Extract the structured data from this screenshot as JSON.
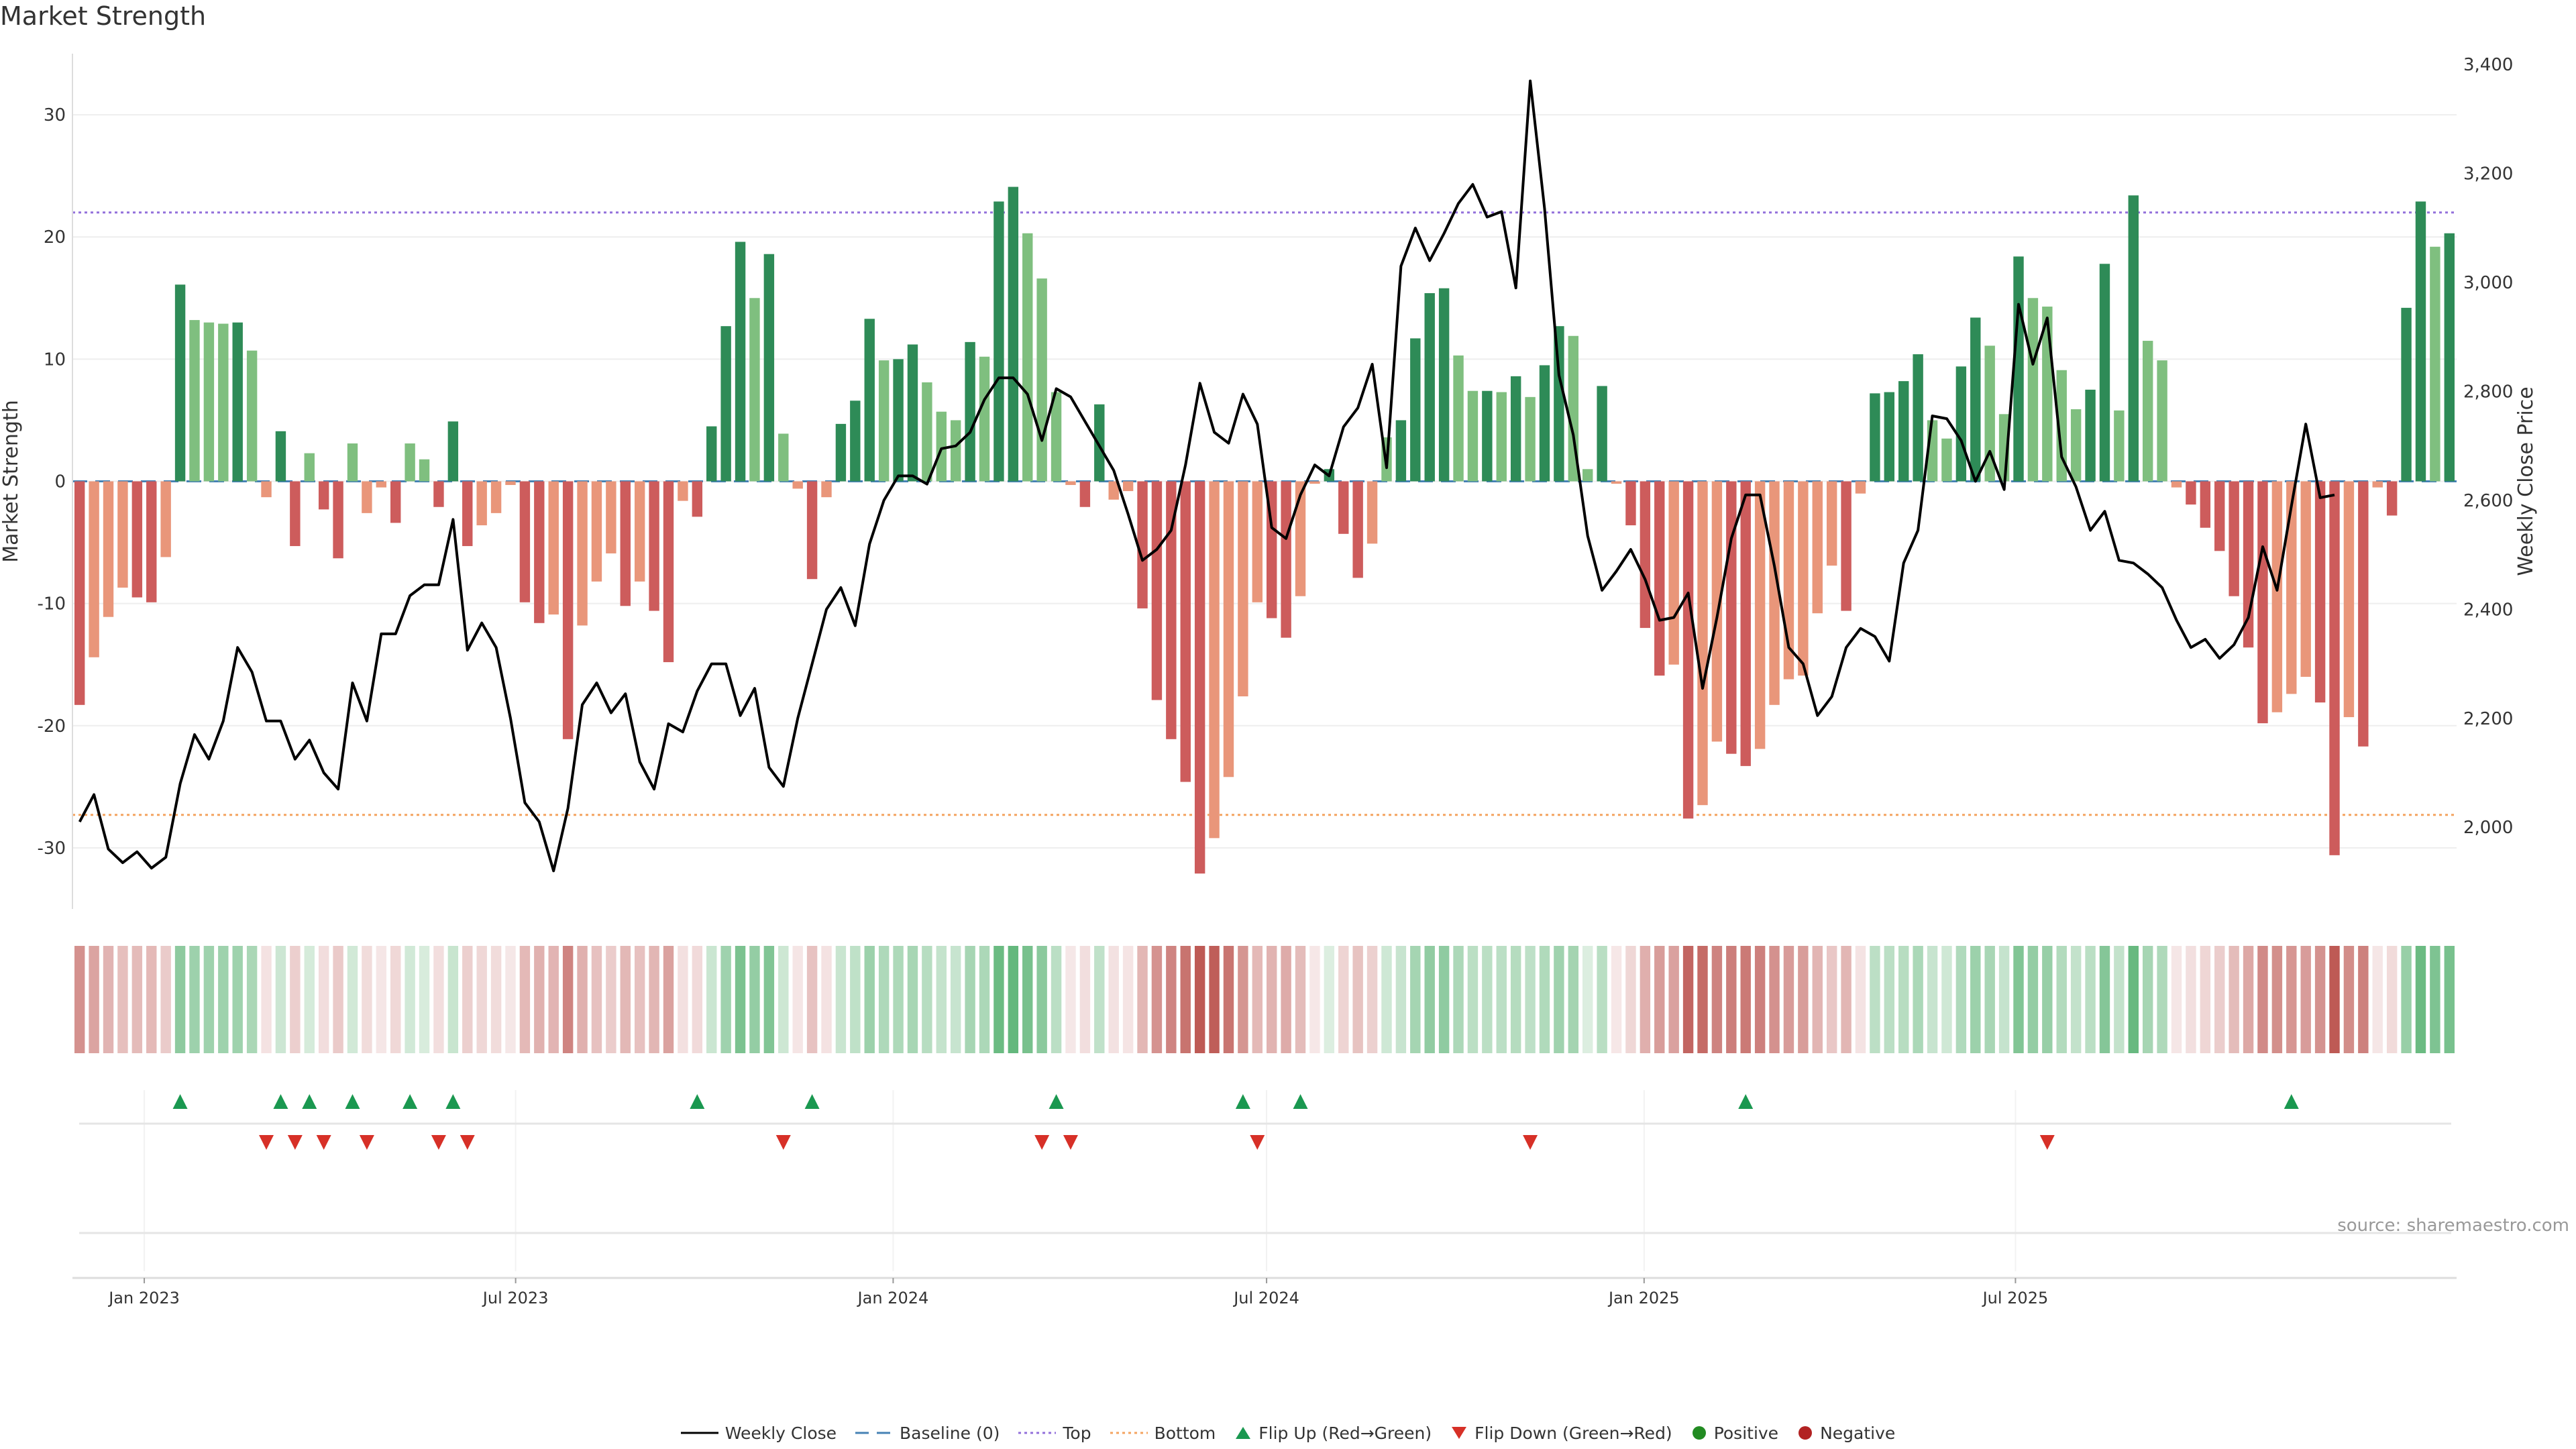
{
  "title": "Market Strength",
  "source": "source: sharemaestro.com",
  "colors": {
    "strong_green": "#2e8b57",
    "light_green": "#7fbf7f",
    "strong_red": "#cd5c5c",
    "light_red": "#e9967a",
    "price_line": "#000000",
    "top_line": "#9370db",
    "bottom_line": "#f4a460",
    "baseline": "#4682b4",
    "flip_up": "#1a9850",
    "flip_down": "#d73027",
    "positive": "#228b22",
    "negative": "#b22222"
  },
  "chart_data": {
    "type": "bar",
    "x_tick_labels": [
      "Jan 2023",
      "Jul 2023",
      "Jan 2024",
      "Jul 2024",
      "Jan 2025",
      "Jul 2025"
    ],
    "x_tick_dates": [
      "2023-01-01",
      "2023-07-01",
      "2024-01-01",
      "2024-07-01",
      "2025-01-01",
      "2025-07-01"
    ],
    "week_start": "2022-11-27",
    "ylabel_left": "Market Strength",
    "ylabel_right": "Weekly Close Price",
    "ylim_left": [
      -35,
      35
    ],
    "ylim_right": [
      1850,
      3420
    ],
    "yticks_left": [
      -30,
      -20,
      -10,
      0,
      10,
      20,
      30
    ],
    "yticks_right": [
      2000,
      2200,
      2400,
      2600,
      2800,
      3000,
      3200,
      3400
    ],
    "top_level": 22,
    "bottom_level": -27.3,
    "grid": true,
    "legend_position": "bottom-center",
    "series": [
      {
        "name": "Market Strength",
        "values": [
          -18.3,
          -14.4,
          -11.1,
          -8.7,
          -9.5,
          -9.9,
          -6.2,
          16.1,
          13.2,
          13.0,
          12.9,
          13.0,
          10.7,
          -1.3,
          4.1,
          -5.3,
          2.3,
          -2.3,
          -6.3,
          3.1,
          -2.6,
          -0.5,
          -3.4,
          3.1,
          1.8,
          -2.1,
          4.9,
          -5.3,
          -3.6,
          -2.6,
          -0.3,
          -9.9,
          -11.6,
          -10.9,
          -21.1,
          -11.8,
          -8.2,
          -5.9,
          -10.2,
          -8.2,
          -10.6,
          -14.8,
          -1.6,
          -2.9,
          4.5,
          12.7,
          19.6,
          15.0,
          18.6,
          3.9,
          -0.6,
          -8.0,
          -1.3,
          4.7,
          6.6,
          13.3,
          9.9,
          10.0,
          11.2,
          8.1,
          5.7,
          5.0,
          11.4,
          10.2,
          22.9,
          24.1,
          20.3,
          16.6,
          7.3,
          -0.3,
          -2.1,
          6.3,
          -1.5,
          -0.8,
          -10.4,
          -17.9,
          -21.1,
          -24.6,
          -32.1,
          -29.2,
          -24.2,
          -17.6,
          -9.9,
          -11.2,
          -12.8,
          -9.4,
          -0.2,
          1.0,
          -4.3,
          -7.9,
          -5.1,
          3.6,
          5.0,
          11.7,
          15.4,
          15.8,
          10.3,
          7.4,
          7.4,
          7.3,
          8.6,
          6.9,
          9.5,
          12.7,
          11.9,
          1.0,
          7.8,
          -0.2,
          -3.6,
          -12.0,
          -15.9,
          -15.0,
          -27.6,
          -26.5,
          -21.3,
          -22.3,
          -23.3,
          -21.9,
          -18.3,
          -16.2,
          -15.9,
          -10.8,
          -6.9,
          -10.6,
          -1.0,
          7.2,
          7.3,
          8.2,
          10.4,
          5.0,
          3.5,
          9.4,
          13.4,
          11.1,
          5.5,
          18.4,
          15.0,
          14.3,
          9.1,
          5.9,
          7.5,
          17.8,
          5.8,
          23.4,
          11.5,
          9.9,
          -0.5,
          -1.9,
          -3.8,
          -5.7,
          -9.4,
          -13.6,
          -19.8,
          -18.9,
          -17.4,
          -16.0,
          -18.1,
          -30.6,
          -19.3,
          -21.7,
          -0.5,
          -2.8,
          14.2,
          22.9,
          19.2,
          20.3
        ]
      },
      {
        "name": "Weekly Close",
        "values": [
          2010,
          2060,
          1960,
          1935,
          1955,
          1925,
          1945,
          2080,
          2170,
          2125,
          2195,
          2330,
          2285,
          2195,
          2195,
          2125,
          2160,
          2100,
          2070,
          2265,
          2195,
          2355,
          2355,
          2425,
          2445,
          2445,
          2565,
          2325,
          2375,
          2330,
          2200,
          2045,
          2010,
          1920,
          2035,
          2225,
          2265,
          2210,
          2245,
          2120,
          2070,
          2190,
          2175,
          2250,
          2300,
          2300,
          2205,
          2255,
          2110,
          2075,
          2200,
          2300,
          2400,
          2440,
          2370,
          2520,
          2600,
          2645,
          2645,
          2630,
          2695,
          2700,
          2725,
          2785,
          2825,
          2825,
          2795,
          2710,
          2805,
          2790,
          2745,
          2700,
          2655,
          2575,
          2490,
          2510,
          2545,
          2665,
          2815,
          2725,
          2705,
          2795,
          2740,
          2550,
          2530,
          2610,
          2665,
          2645,
          2735,
          2770,
          2850,
          2660,
          3030,
          3100,
          3040,
          3090,
          3145,
          3180,
          3120,
          3130,
          2990,
          3370,
          3135,
          2830,
          2720,
          2535,
          2435,
          2470,
          2510,
          2455,
          2380,
          2385,
          2430,
          2255,
          2385,
          2530,
          2610,
          2610,
          2480,
          2330,
          2300,
          2205,
          2240,
          2330,
          2365,
          2350,
          2305,
          2485,
          2545,
          2755,
          2750,
          2710,
          2635,
          2690,
          2620,
          2960,
          2850,
          2935,
          2680,
          2625,
          2545,
          2580,
          2490,
          2485,
          2465,
          2440,
          2380,
          2330,
          2345,
          2310,
          2335,
          2385,
          2515,
          2435,
          2590,
          2740,
          2605,
          2610
        ]
      }
    ],
    "flip_up_weeks": [
      7,
      14,
      16,
      19,
      23,
      26,
      43,
      51,
      68,
      81,
      85,
      116,
      154
    ],
    "flip_down_weeks": [
      13,
      15,
      17,
      20,
      25,
      27,
      49,
      67,
      69,
      82,
      101,
      137
    ]
  },
  "legend": [
    {
      "key": "weekly_close",
      "label": "Weekly Close"
    },
    {
      "key": "baseline",
      "label": "Baseline (0)"
    },
    {
      "key": "top",
      "label": "Top"
    },
    {
      "key": "bottom",
      "label": "Bottom"
    },
    {
      "key": "flip_up",
      "label": "Flip Up (Red→Green)"
    },
    {
      "key": "flip_down",
      "label": "Flip Down (Green→Red)"
    },
    {
      "key": "positive",
      "label": "Positive"
    },
    {
      "key": "negative",
      "label": "Negative"
    }
  ]
}
